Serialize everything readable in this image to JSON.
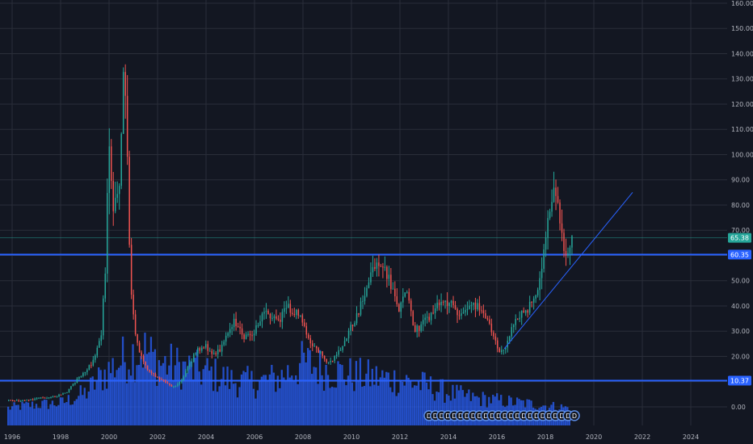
{
  "chart_data": {
    "type": "candlestick",
    "x_ticks": [
      "1996",
      "1998",
      "2000",
      "2002",
      "2004",
      "2006",
      "2008",
      "2010",
      "2012",
      "2014",
      "2016",
      "2018",
      "2020",
      "2022",
      "2024"
    ],
    "y_ticks": [
      "0.00",
      "10.00",
      "20.00",
      "30.00",
      "40.00",
      "50.00",
      "60.00",
      "70.00",
      "80.00",
      "90.00",
      "100.00",
      "110.00",
      "120.00",
      "130.00",
      "140.00",
      "150.00",
      "160.00"
    ],
    "xlim": [
      1995.5,
      2025.5
    ],
    "ylim": [
      -4.5,
      160
    ],
    "grid": true,
    "price_path": [
      [
        1995.8,
        2.5
      ],
      [
        1996.5,
        2.5
      ],
      [
        1997.2,
        3.5
      ],
      [
        1997.8,
        4
      ],
      [
        1998.3,
        6
      ],
      [
        1998.8,
        12
      ],
      [
        1999.3,
        17
      ],
      [
        1999.7,
        28
      ],
      [
        1999.9,
        60
      ],
      [
        2000.0,
        110
      ],
      [
        2000.2,
        75
      ],
      [
        2000.45,
        88
      ],
      [
        2000.6,
        130
      ],
      [
        2000.75,
        115
      ],
      [
        2000.9,
        50
      ],
      [
        2001.1,
        28
      ],
      [
        2001.4,
        18
      ],
      [
        2001.7,
        14
      ],
      [
        2002.0,
        12
      ],
      [
        2002.3,
        10
      ],
      [
        2002.6,
        8
      ],
      [
        2002.9,
        9
      ],
      [
        2003.2,
        14
      ],
      [
        2003.6,
        22
      ],
      [
        2004.0,
        24
      ],
      [
        2004.4,
        20
      ],
      [
        2004.8,
        26
      ],
      [
        2005.2,
        34
      ],
      [
        2005.6,
        28
      ],
      [
        2006.0,
        30
      ],
      [
        2006.5,
        38
      ],
      [
        2007.0,
        34
      ],
      [
        2007.4,
        40
      ],
      [
        2007.9,
        36
      ],
      [
        2008.3,
        26
      ],
      [
        2008.7,
        22
      ],
      [
        2009.0,
        17
      ],
      [
        2009.4,
        20
      ],
      [
        2009.8,
        28
      ],
      [
        2010.2,
        35
      ],
      [
        2010.6,
        45
      ],
      [
        2010.9,
        55
      ],
      [
        2011.2,
        58
      ],
      [
        2011.5,
        52
      ],
      [
        2011.8,
        44
      ],
      [
        2012.0,
        38
      ],
      [
        2012.3,
        48
      ],
      [
        2012.6,
        30
      ],
      [
        2013.0,
        33
      ],
      [
        2013.4,
        38
      ],
      [
        2013.8,
        42
      ],
      [
        2014.2,
        40
      ],
      [
        2014.6,
        36
      ],
      [
        2015.0,
        42
      ],
      [
        2015.4,
        38
      ],
      [
        2015.8,
        30
      ],
      [
        2016.1,
        22
      ],
      [
        2016.4,
        24
      ],
      [
        2016.8,
        35
      ],
      [
        2017.2,
        38
      ],
      [
        2017.6,
        42
      ],
      [
        2018.0,
        62
      ],
      [
        2018.2,
        78
      ],
      [
        2018.4,
        86
      ],
      [
        2018.6,
        75
      ],
      [
        2018.8,
        62
      ],
      [
        2018.9,
        60
      ],
      [
        2019.1,
        65
      ]
    ],
    "volume_path": [
      [
        1995.8,
        4
      ],
      [
        1996.5,
        5
      ],
      [
        1998.0,
        6
      ],
      [
        1999.0,
        10
      ],
      [
        1999.8,
        18
      ],
      [
        2000.8,
        25
      ],
      [
        2001.4,
        27
      ],
      [
        2002.0,
        22
      ],
      [
        2003.0,
        20
      ],
      [
        2004.0,
        18
      ],
      [
        2005.0,
        15
      ],
      [
        2006.0,
        14
      ],
      [
        2007.0,
        16
      ],
      [
        2008.0,
        22
      ],
      [
        2009.0,
        19
      ],
      [
        2010.0,
        17
      ],
      [
        2011.0,
        16
      ],
      [
        2012.0,
        15
      ],
      [
        2013.0,
        13
      ],
      [
        2014.0,
        10
      ],
      [
        2015.0,
        8
      ],
      [
        2016.0,
        7
      ],
      [
        2017.0,
        6
      ],
      [
        2018.0,
        5
      ],
      [
        2019.0,
        4
      ]
    ],
    "horizontal_lines": [
      {
        "value": 60.35,
        "color": "#2962ff"
      },
      {
        "value": 10.37,
        "color": "#2962ff"
      }
    ],
    "trend_line": {
      "from": [
        2016.3,
        23
      ],
      "to": [
        2021.6,
        85
      ],
      "color": "#2962ff"
    },
    "price_badges": [
      {
        "label": "65.38",
        "value": 67.0,
        "color": "#26a69a"
      },
      {
        "label": "60.35",
        "value": 60.35,
        "color": "#2962ff"
      },
      {
        "label": "10.37",
        "value": 10.37,
        "color": "#2962ff"
      }
    ],
    "event_markers": {
      "start": 2013.2,
      "end": 2019.2,
      "count": 24,
      "value": -3.5,
      "glyph": "D"
    },
    "colors": {
      "background": "#131722",
      "grid": "#2a2e39",
      "up": "#26a69a",
      "down": "#ef5350",
      "volume": "#2962ff"
    }
  }
}
